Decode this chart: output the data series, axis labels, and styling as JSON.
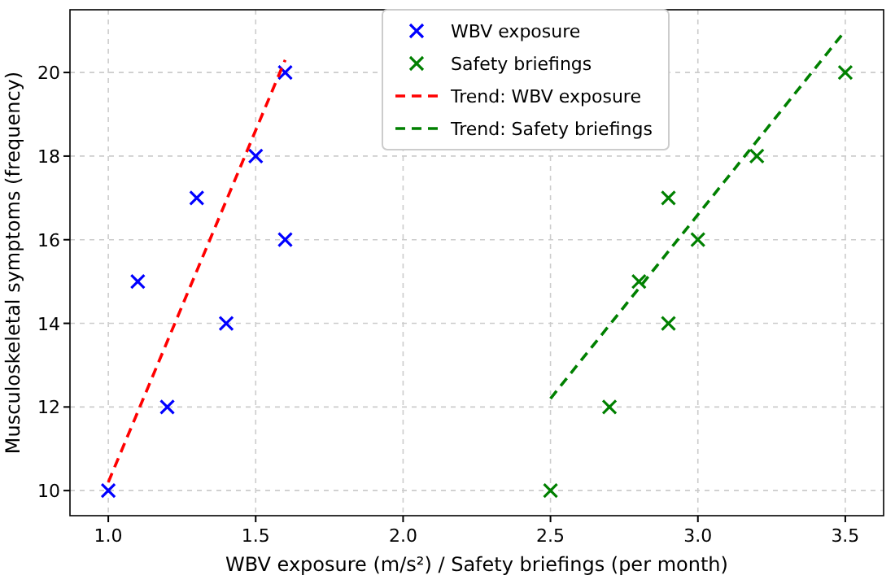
{
  "chart_data": {
    "type": "scatter",
    "xlabel": "WBV exposure (m/s²) / Safety briefings (per month)",
    "ylabel": "Musculoskeletal symptoms (frequency)",
    "xlim": [
      0.87,
      3.63
    ],
    "xticks": [
      {
        "value": 1,
        "label": "1.0"
      },
      {
        "value": 1.5,
        "label": "1.5"
      },
      {
        "value": 2,
        "label": "2.0"
      },
      {
        "value": 2.5,
        "label": "2.5"
      },
      {
        "value": 3,
        "label": "3.0"
      },
      {
        "value": 3.5,
        "label": "3.5"
      }
    ],
    "ylim": [
      9.4,
      21.5
    ],
    "yticks": [
      10,
      12,
      14,
      16,
      18,
      20
    ],
    "grid": true,
    "legend": "top",
    "series": [
      {
        "name": "WBV exposure",
        "marker": "cross",
        "color": "#0000ff",
        "x": [
          1.0,
          1.1,
          1.2,
          1.3,
          1.4,
          1.5,
          1.6,
          1.6
        ],
        "values": [
          10,
          15,
          12,
          17,
          14,
          18,
          16,
          20
        ]
      },
      {
        "name": "Safety briefings",
        "marker": "cross",
        "color": "#008000",
        "x": [
          2.5,
          2.7,
          2.8,
          2.9,
          2.9,
          3.0,
          3.2,
          3.5
        ],
        "values": [
          10,
          12,
          15,
          17,
          14,
          16,
          18,
          20
        ]
      },
      {
        "name": "Trend: WBV exposure",
        "type": "line",
        "marker": "none",
        "line_style": "dashed",
        "color": "#ff0000",
        "x": [
          1.0,
          1.6
        ],
        "values": [
          10.2,
          20.3
        ]
      },
      {
        "name": "Trend: Safety briefings",
        "type": "line",
        "marker": "none",
        "line_style": "dashed",
        "color": "#008000",
        "x": [
          2.5,
          3.5
        ],
        "values": [
          12.2,
          21.0
        ]
      }
    ]
  }
}
